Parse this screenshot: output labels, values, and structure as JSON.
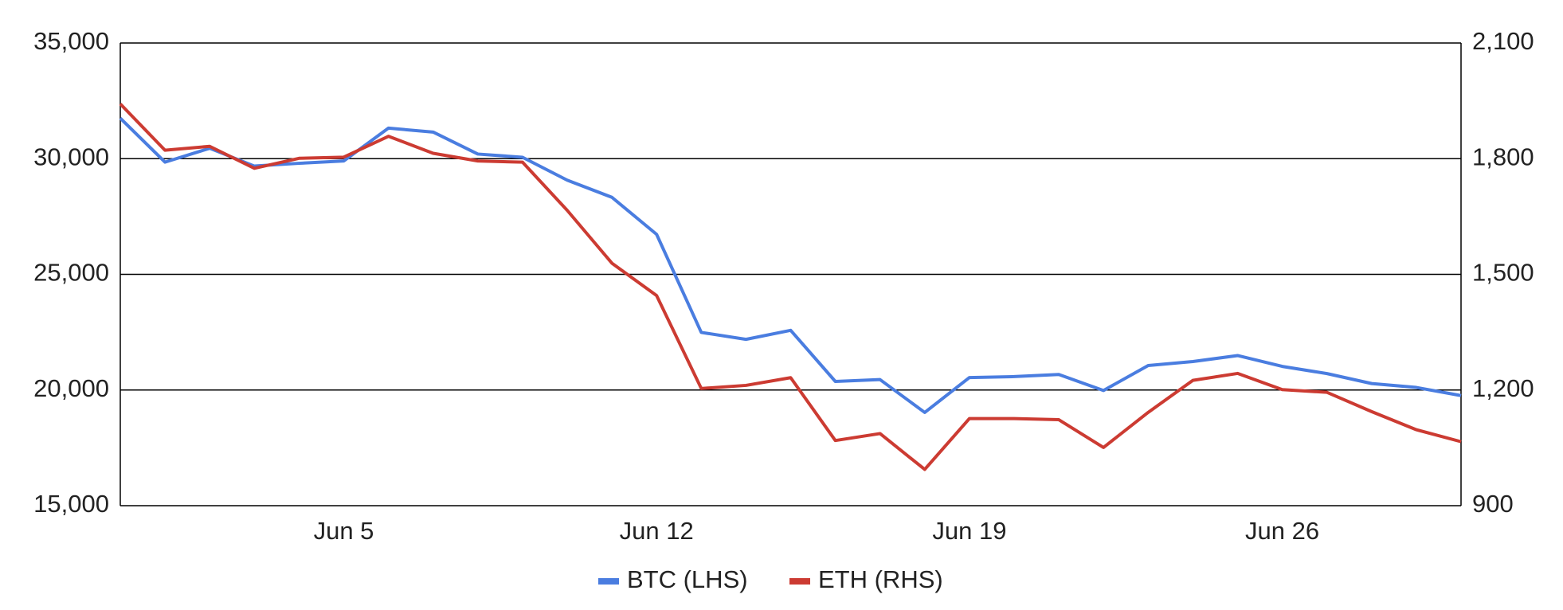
{
  "chart_data": {
    "type": "line",
    "categories": [
      null,
      null,
      null,
      null,
      null,
      "Jun 5",
      null,
      null,
      null,
      null,
      null,
      null,
      "Jun 12",
      null,
      null,
      null,
      null,
      null,
      null,
      "Jun 19",
      null,
      null,
      null,
      null,
      null,
      null,
      "Jun 26",
      null,
      null,
      null,
      null
    ],
    "series": [
      {
        "name": "BTC (LHS)",
        "color": "#4a7de0",
        "axis": "y",
        "values": [
          31750,
          29850,
          30450,
          29680,
          29800,
          29900,
          31320,
          31150,
          30200,
          30060,
          29070,
          28330,
          26730,
          22490,
          22190,
          22580,
          20370,
          20450,
          19030,
          20540,
          20580,
          20670,
          19980,
          21060,
          21230,
          21490,
          21020,
          20710,
          20280,
          20110,
          19760
        ]
      },
      {
        "name": "ETH (RHS)",
        "color": "#cc3b32",
        "axis": "y2",
        "values": [
          1942,
          1822,
          1832,
          1775,
          1801,
          1804,
          1858,
          1814,
          1794,
          1791,
          1666,
          1529,
          1445,
          1204,
          1212,
          1232,
          1069,
          1087,
          994,
          1126,
          1126,
          1123,
          1051,
          1142,
          1225,
          1243,
          1201,
          1194,
          1144,
          1097,
          1066
        ]
      }
    ],
    "ylim": [
      15000,
      35000
    ],
    "yticks": [
      {
        "value": 15000,
        "label": "15,000"
      },
      {
        "value": 20000,
        "label": "20,000"
      },
      {
        "value": 25000,
        "label": "25,000"
      },
      {
        "value": 30000,
        "label": "30,000"
      },
      {
        "value": 35000,
        "label": "35,000"
      }
    ],
    "y2lim": [
      900,
      2100
    ],
    "y2ticks": [
      900,
      {
        "value": 1200,
        "label": "1,200"
      },
      {
        "value": 1500,
        "label": "1,500"
      },
      {
        "value": 1800,
        "label": "1,800"
      },
      {
        "value": 2100,
        "label": "2,100"
      }
    ],
    "grid": true,
    "legend": "bottom"
  }
}
